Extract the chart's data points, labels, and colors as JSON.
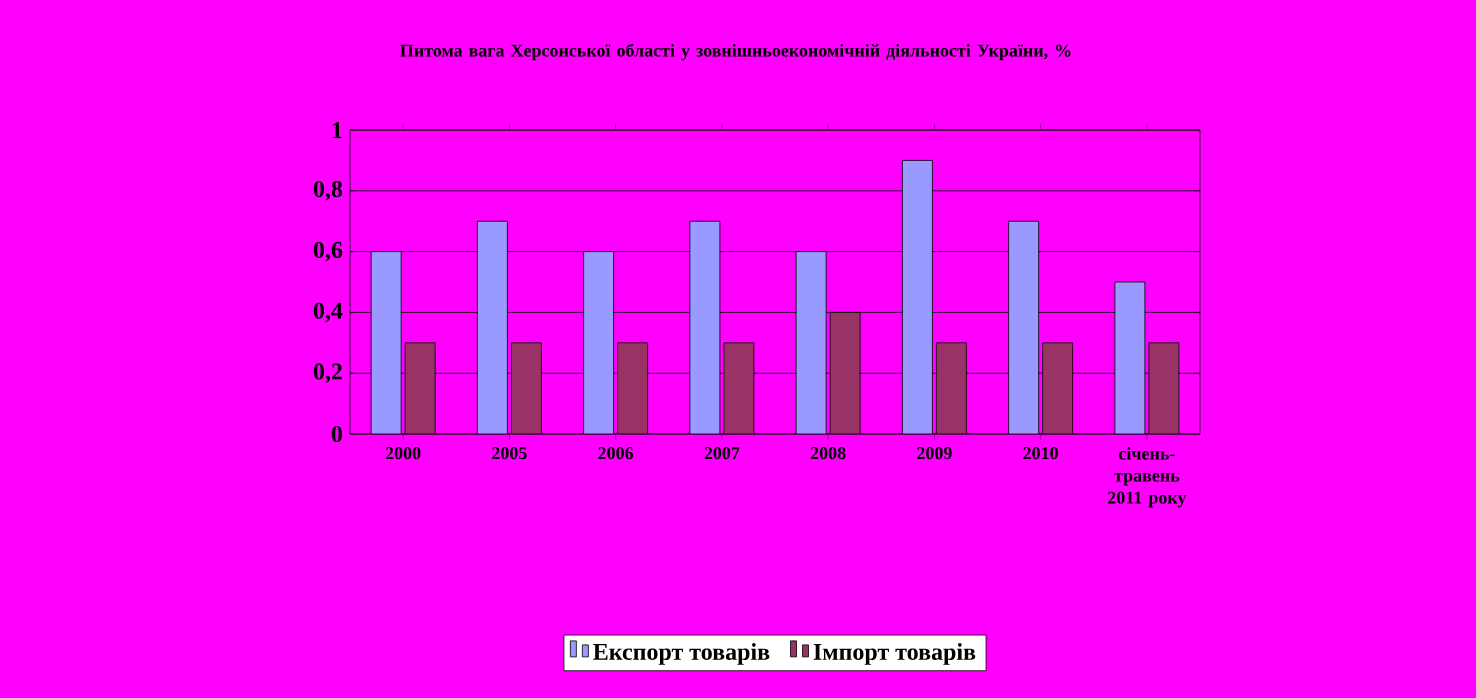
{
  "chart_data": {
    "type": "bar",
    "title": "Питома вага Херсонської області у зовнішньоекономічній діяльності України, %",
    "categories": [
      "2000",
      "2005",
      "2006",
      "2007",
      "2008",
      "2009",
      "2010",
      "січень-травень 2011 року"
    ],
    "series": [
      {
        "name": "Експорт товарів",
        "color": "#9999ff",
        "values": [
          0.6,
          0.7,
          0.6,
          0.7,
          0.6,
          0.9,
          0.7,
          0.5
        ]
      },
      {
        "name": "Імпорт товарів",
        "color": "#993366",
        "values": [
          0.3,
          0.3,
          0.3,
          0.3,
          0.4,
          0.3,
          0.3,
          0.3
        ]
      }
    ],
    "ylim": [
      0,
      1
    ],
    "yticks": [
      0,
      {
        "value": 0.2,
        "label": "0,2"
      },
      {
        "value": 0.4,
        "label": "0,4"
      },
      {
        "value": 0.6,
        "label": "0,6"
      },
      {
        "value": 0.8,
        "label": "0,8"
      },
      1
    ],
    "grid": "y",
    "legend": "bottom"
  }
}
